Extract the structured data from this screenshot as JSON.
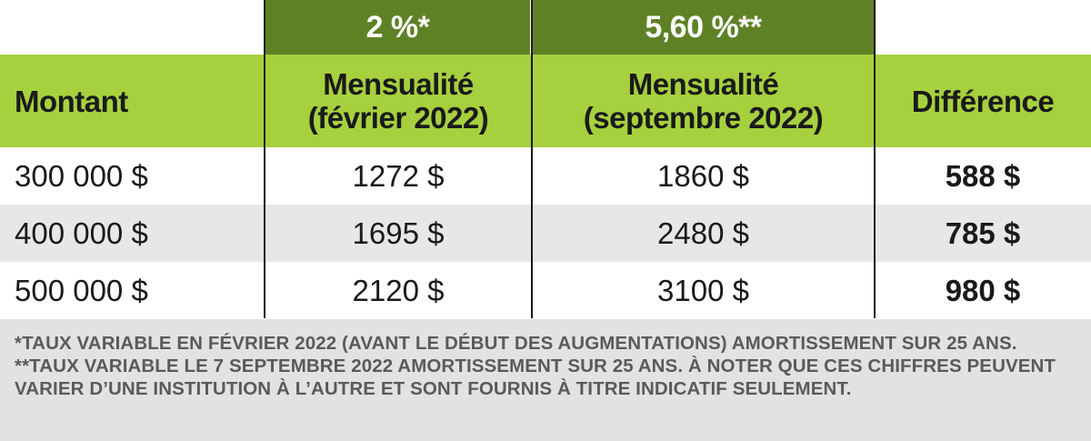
{
  "rates": {
    "rate_1": "2 %*",
    "rate_2": "5,60 %**"
  },
  "headers": {
    "montant": "Montant",
    "m1_line1": "Mensualité",
    "m1_line2": "(février 2022)",
    "m2_line1": "Mensualité",
    "m2_line2": "(septembre 2022)",
    "difference": "Différence"
  },
  "rows": [
    {
      "montant": "300 000 $",
      "m1": "1272 $",
      "m2": "1860 $",
      "difference": "588 $"
    },
    {
      "montant": "400 000 $",
      "m1": "1695 $",
      "m2": "2480 $",
      "difference": "785 $"
    },
    {
      "montant": "500 000 $",
      "m1": "2120 $",
      "m2": "3100 $",
      "difference": "980 $"
    }
  ],
  "footnote": "*TAUX VARIABLE EN FÉVRIER 2022 (AVANT LE DÉBUT DES AUGMENTATIONS) AMORTISSEMENT SUR 25 ANS.  **TAUX VARIABLE LE 7 SEPTEMBRE 2022 AMORTISSEMENT SUR 25 ANS. À NOTER QUE CES CHIFFRES PEUVENT VARIER D’UNE INSTITUTION À L’AUTRE ET SONT FOURNIS À TITRE INDICATIF SEULEMENT.",
  "colors": {
    "dark_green": "#5f8126",
    "light_green": "#a6d03e",
    "row_gray": "#e7e7ea",
    "note_gray": "#e2e2e5",
    "note_text": "#5a5a5c"
  }
}
